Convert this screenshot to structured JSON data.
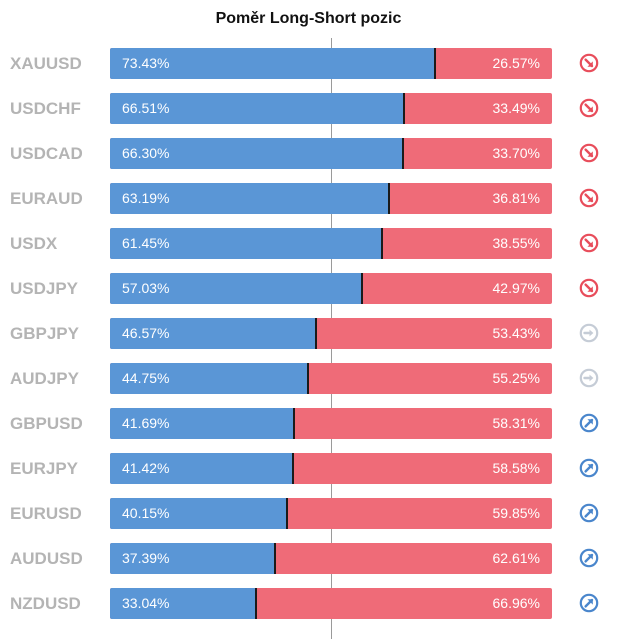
{
  "title": "Poměr Long-Short pozic",
  "colors": {
    "long": "#5a96d6",
    "short": "#ef6b78",
    "signal_down": "#e84d5b",
    "signal_neutral": "#c5ccd6",
    "signal_up": "#4a86cc"
  },
  "rows": [
    {
      "symbol": "XAUUSD",
      "long": 73.43,
      "long_label": "73.43%",
      "short_label": "26.57%",
      "signal": "down",
      "signal_icon": "arrow-down-right-icon"
    },
    {
      "symbol": "USDCHF",
      "long": 66.51,
      "long_label": "66.51%",
      "short_label": "33.49%",
      "signal": "down",
      "signal_icon": "arrow-down-right-icon"
    },
    {
      "symbol": "USDCAD",
      "long": 66.3,
      "long_label": "66.30%",
      "short_label": "33.70%",
      "signal": "down",
      "signal_icon": "arrow-down-right-icon"
    },
    {
      "symbol": "EURAUD",
      "long": 63.19,
      "long_label": "63.19%",
      "short_label": "36.81%",
      "signal": "down",
      "signal_icon": "arrow-down-right-icon"
    },
    {
      "symbol": "USDX",
      "long": 61.45,
      "long_label": "61.45%",
      "short_label": "38.55%",
      "signal": "down",
      "signal_icon": "arrow-down-right-icon"
    },
    {
      "symbol": "USDJPY",
      "long": 57.03,
      "long_label": "57.03%",
      "short_label": "42.97%",
      "signal": "down",
      "signal_icon": "arrow-down-right-icon"
    },
    {
      "symbol": "GBPJPY",
      "long": 46.57,
      "long_label": "46.57%",
      "short_label": "53.43%",
      "signal": "neutral",
      "signal_icon": "arrow-right-icon"
    },
    {
      "symbol": "AUDJPY",
      "long": 44.75,
      "long_label": "44.75%",
      "short_label": "55.25%",
      "signal": "neutral",
      "signal_icon": "arrow-right-icon"
    },
    {
      "symbol": "GBPUSD",
      "long": 41.69,
      "long_label": "41.69%",
      "short_label": "58.31%",
      "signal": "up",
      "signal_icon": "arrow-up-right-icon"
    },
    {
      "symbol": "EURJPY",
      "long": 41.42,
      "long_label": "41.42%",
      "short_label": "58.58%",
      "signal": "up",
      "signal_icon": "arrow-up-right-icon"
    },
    {
      "symbol": "EURUSD",
      "long": 40.15,
      "long_label": "40.15%",
      "short_label": "59.85%",
      "signal": "up",
      "signal_icon": "arrow-up-right-icon"
    },
    {
      "symbol": "AUDUSD",
      "long": 37.39,
      "long_label": "37.39%",
      "short_label": "62.61%",
      "signal": "up",
      "signal_icon": "arrow-up-right-icon"
    },
    {
      "symbol": "NZDUSD",
      "long": 33.04,
      "long_label": "33.04%",
      "short_label": "66.96%",
      "signal": "up",
      "signal_icon": "arrow-up-right-icon"
    }
  ]
}
